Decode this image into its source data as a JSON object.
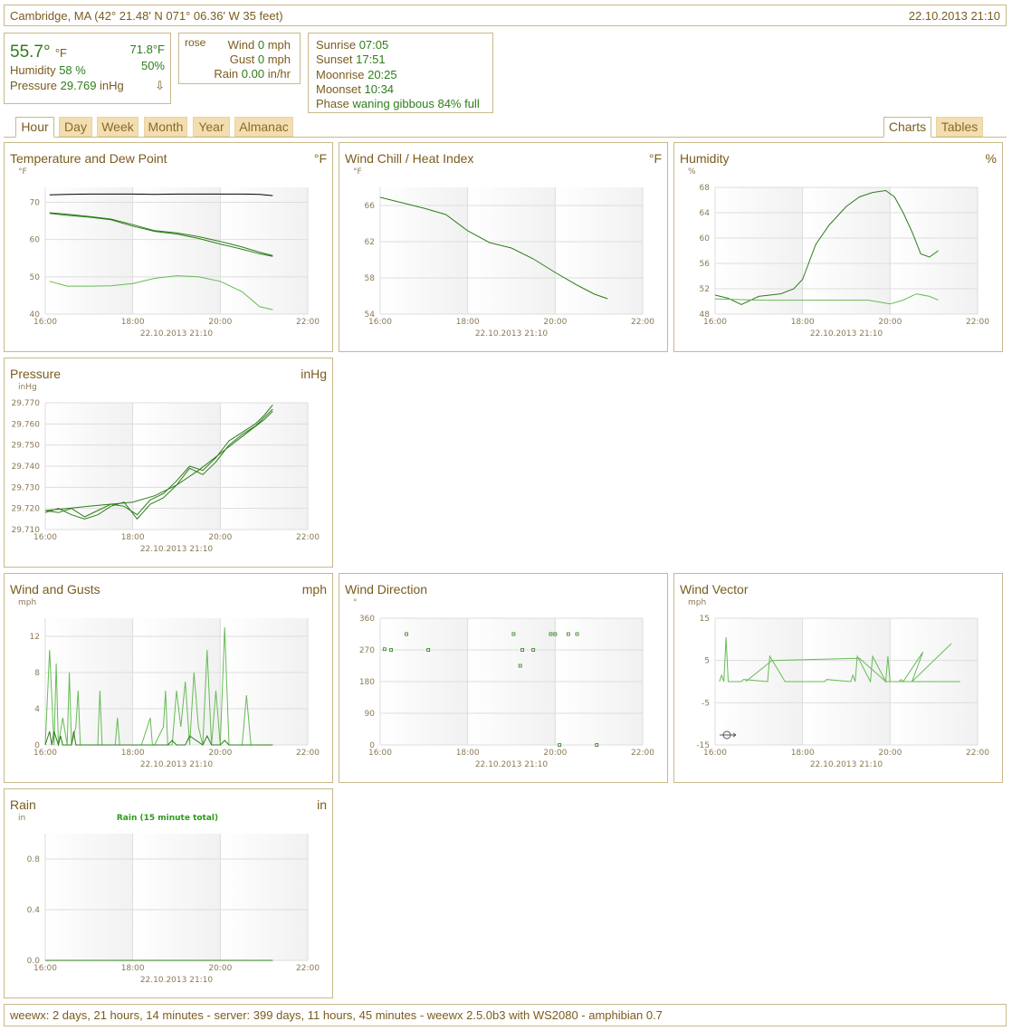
{
  "header": {
    "location": "Cambridge, MA (42° 21.48' N 071° 06.36' W 35 feet)",
    "timestamp": "22.10.2013 21:10"
  },
  "current": {
    "temperature": "55.7°",
    "temperature_unit": "°F",
    "inside_temp": "71.8°F",
    "inside_humidity": "50%",
    "humidity_label": "Humidity",
    "humidity_value": "58 %",
    "pressure_label": "Pressure",
    "pressure_value": "29.769",
    "pressure_unit": "inHg",
    "pressure_trend": "⇩"
  },
  "wind": {
    "rose_label": "rose",
    "wind_label": "Wind",
    "wind_value": "0",
    "wind_unit": "mph",
    "gust_label": "Gust",
    "gust_value": "0",
    "gust_unit": "mph",
    "rain_label": "Rain",
    "rain_value": "0.00",
    "rain_unit": "in/hr"
  },
  "almanac": {
    "sunrise_label": "Sunrise",
    "sunrise": "07:05",
    "sunset_label": "Sunset",
    "sunset": "17:51",
    "moonrise_label": "Moonrise",
    "moonrise": "20:25",
    "moonset_label": "Moonset",
    "moonset": "10:34",
    "phase_label": "Phase",
    "phase": "waning gibbous 84% full"
  },
  "tabs": {
    "left": [
      "Hour",
      "Day",
      "Week",
      "Month",
      "Year",
      "Almanac"
    ],
    "active": "Hour",
    "right": [
      "Charts",
      "Tables"
    ],
    "right_active": "Charts"
  },
  "colors": {
    "accent_green": "#2e7d1a",
    "border": "#c9b88a",
    "text": "#7a5c1e",
    "tab_bg": "#f2deb0"
  },
  "footer": {
    "text": "weewx: 2 days, 21 hours, 14 minutes - server: 399 days, 11 hours, 45 minutes - weewx 2.5.0b3 with WS2080 - amphibian 0.7"
  },
  "panels": {
    "temp": {
      "title": "Temperature and Dew Point",
      "unit": "°F"
    },
    "chill": {
      "title": "Wind Chill / Heat Index",
      "unit": "°F"
    },
    "humidity": {
      "title": "Humidity",
      "unit": "%"
    },
    "pressure": {
      "title": "Pressure",
      "unit": "inHg"
    },
    "wind": {
      "title": "Wind and Gusts",
      "unit": "mph"
    },
    "winddir": {
      "title": "Wind Direction",
      "unit": ""
    },
    "windvec": {
      "title": "Wind Vector",
      "unit": ""
    },
    "rain": {
      "title": "Rain",
      "unit": "in"
    }
  },
  "chart_data": [
    {
      "id": "temp",
      "type": "line",
      "ylabel": "°F",
      "xlabel": "22.10.2013 21:10",
      "xlim": [
        16,
        22
      ],
      "ylim": [
        40,
        74
      ],
      "yticks": [
        40,
        50,
        60,
        70
      ],
      "xticks": [
        "16:00",
        "18:00",
        "20:00",
        "22:00"
      ],
      "series": [
        {
          "color": "#000000",
          "x": [
            16.1,
            16.5,
            17,
            17.5,
            18,
            18.5,
            19,
            19.5,
            20,
            20.5,
            20.9,
            21.2
          ],
          "y": [
            72,
            72.1,
            72.2,
            72.2,
            72.2,
            72.1,
            72.2,
            72.2,
            72.2,
            72.2,
            72.1,
            71.8
          ]
        },
        {
          "color": "#2e7d1a",
          "x": [
            16.1,
            16.5,
            17,
            17.5,
            18,
            18.5,
            19,
            19.5,
            20,
            20.5,
            20.9,
            21.2
          ],
          "y": [
            67.2,
            66.8,
            66.2,
            65.5,
            64,
            62.4,
            61.8,
            60.8,
            59.5,
            58,
            56.6,
            55.7
          ]
        },
        {
          "color": "#2e7d1a",
          "x": [
            16.1,
            16.5,
            17,
            17.5,
            18,
            18.5,
            19,
            19.5,
            20,
            20.5,
            20.9,
            21.2
          ],
          "y": [
            67.0,
            66.5,
            66,
            65.3,
            63.6,
            62.2,
            61.5,
            60.3,
            58.8,
            57.4,
            56.2,
            55.5
          ]
        },
        {
          "color": "#66bb55",
          "x": [
            16.1,
            16.5,
            17,
            17.5,
            18,
            18.5,
            19,
            19.5,
            20,
            20.5,
            20.9,
            21.2
          ],
          "y": [
            48.8,
            47.5,
            47.5,
            47.6,
            48.2,
            49.6,
            50.3,
            50,
            48.8,
            46,
            42,
            41.2
          ]
        }
      ]
    },
    {
      "id": "chill",
      "type": "line",
      "ylabel": "°F",
      "xlabel": "22.10.2013 21:10",
      "xlim": [
        16,
        22
      ],
      "ylim": [
        54,
        68
      ],
      "yticks": [
        54,
        58,
        62,
        66
      ],
      "xticks": [
        "16:00",
        "18:00",
        "20:00",
        "22:00"
      ],
      "series": [
        {
          "color": "#2e7d1a",
          "x": [
            16.0,
            16.5,
            17,
            17.5,
            18,
            18.5,
            19,
            19.5,
            20,
            20.5,
            20.9,
            21.2
          ],
          "y": [
            66.9,
            66.3,
            65.7,
            65.0,
            63.2,
            61.9,
            61.3,
            60.1,
            58.6,
            57.2,
            56.2,
            55.7
          ]
        }
      ]
    },
    {
      "id": "humidity",
      "type": "line",
      "ylabel": "%",
      "xlabel": "22.10.2013 21:10",
      "xlim": [
        16,
        22
      ],
      "ylim": [
        48,
        68
      ],
      "yticks": [
        48,
        52,
        56,
        60,
        64,
        68
      ],
      "xticks": [
        "16:00",
        "18:00",
        "20:00",
        "22:00"
      ],
      "series": [
        {
          "color": "#2e7d1a",
          "x": [
            16.0,
            16.3,
            16.6,
            17,
            17.5,
            17.8,
            18,
            18.3,
            18.6,
            19,
            19.3,
            19.6,
            19.9,
            20.1,
            20.3,
            20.5,
            20.7,
            20.9,
            21.1
          ],
          "y": [
            51,
            50.5,
            49.5,
            50.8,
            51.2,
            52,
            53.5,
            59,
            62,
            65,
            66.5,
            67.2,
            67.5,
            66.5,
            64,
            61,
            57.5,
            57,
            58
          ]
        },
        {
          "color": "#66bb55",
          "x": [
            16.0,
            16.5,
            17,
            17.5,
            18,
            18.5,
            19,
            19.5,
            20,
            20.3,
            20.6,
            20.9,
            21.1
          ],
          "y": [
            50.4,
            50.3,
            50.2,
            50.2,
            50.2,
            50.2,
            50.2,
            50.2,
            49.6,
            50.2,
            51.2,
            50.8,
            50.2
          ]
        }
      ]
    },
    {
      "id": "pressure",
      "type": "line",
      "ylabel": "inHg",
      "xlabel": "22.10.2013 21:10",
      "xlim": [
        16,
        22
      ],
      "ylim": [
        29.71,
        29.77
      ],
      "yticks": [
        29.71,
        29.72,
        29.73,
        29.74,
        29.75,
        29.76,
        29.77
      ],
      "xticks": [
        "16:00",
        "18:00",
        "20:00",
        "22:00"
      ],
      "series": [
        {
          "color": "#2e7d1a",
          "x": [
            16.0,
            16.3,
            16.6,
            16.9,
            17.2,
            17.5,
            17.8,
            18.1,
            18.4,
            18.7,
            19.0,
            19.3,
            19.6,
            19.9,
            20.2,
            20.5,
            20.8,
            21.0,
            21.2
          ],
          "y": [
            29.719,
            29.718,
            29.72,
            29.716,
            29.719,
            29.722,
            29.721,
            29.717,
            29.724,
            29.727,
            29.733,
            29.74,
            29.738,
            29.744,
            29.752,
            29.756,
            29.76,
            29.764,
            29.769
          ]
        },
        {
          "color": "#2e7d1a",
          "x": [
            16.0,
            16.3,
            16.6,
            16.9,
            17.2,
            17.5,
            17.8,
            18.1,
            18.4,
            18.7,
            19.0,
            19.3,
            19.6,
            19.9,
            20.2,
            20.5,
            20.8,
            21.0,
            21.2
          ],
          "y": [
            29.718,
            29.72,
            29.717,
            29.715,
            29.717,
            29.721,
            29.723,
            29.715,
            29.722,
            29.725,
            29.731,
            29.739,
            29.736,
            29.742,
            29.75,
            29.755,
            29.759,
            29.763,
            29.767
          ]
        },
        {
          "color": "#2e7d1a",
          "x": [
            16.0,
            16.5,
            17,
            17.5,
            18,
            18.5,
            19,
            19.5,
            20,
            20.5,
            21.0,
            21.2
          ],
          "y": [
            29.719,
            29.72,
            29.721,
            29.722,
            29.723,
            29.726,
            29.731,
            29.738,
            29.746,
            29.754,
            29.762,
            29.766
          ]
        }
      ]
    },
    {
      "id": "wind",
      "type": "line",
      "ylabel": "mph",
      "xlabel": "22.10.2013 21:10",
      "xlim": [
        16,
        22
      ],
      "ylim": [
        0,
        14
      ],
      "yticks": [
        0,
        4,
        8,
        12
      ],
      "xticks": [
        "16:00",
        "18:00",
        "20:00",
        "22:00"
      ],
      "series": [
        {
          "color": "#66bb55",
          "x": [
            16.0,
            16.1,
            16.2,
            16.25,
            16.3,
            16.4,
            16.5,
            16.55,
            16.6,
            16.7,
            16.75,
            16.8,
            17.2,
            17.25,
            17.3,
            17.6,
            17.65,
            17.7,
            18.2,
            18.4,
            18.45,
            18.5,
            18.7,
            18.75,
            18.8,
            18.9,
            19.0,
            19.1,
            19.2,
            19.3,
            19.4,
            19.5,
            19.6,
            19.7,
            19.8,
            19.9,
            20.0,
            20.1,
            20.2,
            20.3,
            20.4,
            20.5,
            20.6,
            20.7,
            20.8,
            20.9,
            20.95,
            21.0,
            21.2
          ],
          "y": [
            0,
            10.5,
            0,
            9,
            0,
            3,
            0,
            8,
            0,
            2,
            6,
            0,
            0,
            6,
            0,
            0,
            3,
            0,
            0,
            3,
            0,
            0,
            2,
            6,
            0,
            0,
            6,
            2,
            7,
            0,
            8,
            2,
            0,
            10.5,
            0,
            6,
            0,
            13,
            0,
            0,
            0,
            0,
            5.5,
            0,
            0,
            0,
            0,
            0,
            0
          ]
        },
        {
          "color": "#2e7d1a",
          "x": [
            16.0,
            16.1,
            16.15,
            16.2,
            16.3,
            16.35,
            16.4,
            16.6,
            16.65,
            16.7,
            18.8,
            18.9,
            19.0,
            19.2,
            19.3,
            19.6,
            19.7,
            19.8,
            20.0,
            20.1,
            20.2,
            21.2
          ],
          "y": [
            0,
            1.5,
            0,
            1.5,
            0,
            1,
            0,
            0,
            1.5,
            0,
            0,
            0.5,
            0,
            0,
            1,
            0,
            1,
            0,
            0,
            0.5,
            0,
            0
          ]
        }
      ]
    },
    {
      "id": "winddir",
      "type": "scatter",
      "ylabel": "°",
      "xlabel": "22.10.2013 21:10",
      "xlim": [
        16,
        22
      ],
      "ylim": [
        0,
        360
      ],
      "yticks": [
        0,
        90,
        180,
        270,
        360
      ],
      "xticks": [
        "16:00",
        "18:00",
        "20:00",
        "22:00"
      ],
      "series": [
        {
          "color": "#2e7d1a",
          "x": [
            16.1,
            16.25,
            16.6,
            17.1,
            19.05,
            19.2,
            19.25,
            19.5,
            19.9,
            20.0,
            20.1,
            20.3,
            20.5,
            20.95
          ],
          "y": [
            272,
            270,
            315,
            270,
            315,
            225,
            270,
            270,
            315,
            315,
            0,
            315,
            315,
            0
          ]
        }
      ]
    },
    {
      "id": "windvec",
      "type": "line",
      "ylabel": "mph",
      "xlabel": "22.10.2013 21:10",
      "xlim": [
        16,
        22
      ],
      "ylim": [
        -15,
        15
      ],
      "yticks": [
        -15,
        -5,
        5,
        15
      ],
      "xticks": [
        "16:00",
        "18:00",
        "20:00",
        "22:00"
      ],
      "series": [
        {
          "color": "#66bb55",
          "x": [
            16.1,
            16.15,
            16.2,
            16.25,
            16.3,
            16.35,
            16.6,
            16.65,
            17.2,
            17.25,
            17.6,
            17.65,
            18.5,
            18.55,
            19.1,
            19.15,
            19.2,
            19.25,
            19.55,
            19.6,
            19.9,
            19.95,
            20.0,
            20.05,
            20.2,
            20.25,
            20.3,
            20.75,
            20.5,
            21.4
          ],
          "y": [
            0,
            1.5,
            0,
            10.5,
            0,
            0,
            0,
            0.5,
            0,
            6,
            0,
            0,
            0,
            0.5,
            0,
            1.5,
            0,
            6,
            0,
            6,
            0,
            6,
            0,
            0,
            0,
            0.5,
            0,
            7,
            0,
            9
          ]
        },
        {
          "color": "#66bb55",
          "x": [
            16.7,
            17.3,
            19.3,
            19.9,
            20.9,
            21.6
          ],
          "y": [
            0,
            5,
            5.5,
            0,
            0,
            0
          ]
        }
      ]
    },
    {
      "id": "rain",
      "type": "line",
      "ylabel": "in",
      "xlabel": "22.10.2013 21:10",
      "title": "Rain (15 minute total)",
      "xlim": [
        16,
        22
      ],
      "ylim": [
        0,
        1.0
      ],
      "yticks": [
        0.0,
        0.4,
        0.8
      ],
      "ytick_labels": [
        "0.0",
        "0.4",
        "0.8"
      ],
      "xticks": [
        "16:00",
        "18:00",
        "20:00",
        "22:00"
      ],
      "series": [
        {
          "color": "#2e7d1a",
          "x": [
            16.0,
            21.2
          ],
          "y": [
            0,
            0
          ]
        }
      ]
    }
  ]
}
